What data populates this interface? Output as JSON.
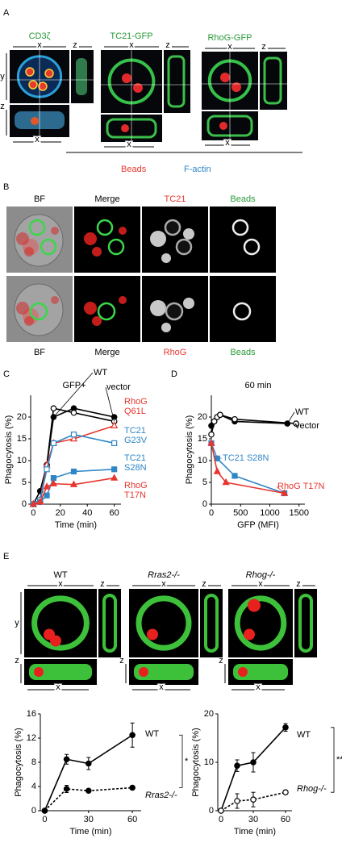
{
  "panels": {
    "A": {
      "label": "A",
      "images": [
        {
          "title": "CD3ζ",
          "top": "x",
          "side": "z",
          "left_top": "y",
          "left_bottom": "z",
          "bottom": "x"
        },
        {
          "title": "TC21-GFP",
          "top": "x",
          "side": "z",
          "bottom": "x"
        },
        {
          "title": "RhoG-GFP",
          "top": "x",
          "side": "z",
          "bottom": "x"
        }
      ],
      "legend": [
        "Beads",
        "F-actin"
      ]
    },
    "B": {
      "label": "B",
      "rows": [
        [
          "BF",
          "Merge",
          "TC21",
          "Beads"
        ],
        [
          "BF",
          "Merge",
          "RhoG",
          "Beads"
        ]
      ]
    },
    "C": {
      "label": "C"
    },
    "D": {
      "label": "D"
    },
    "E": {
      "label": "E",
      "images": [
        {
          "title": "WT",
          "top": "x",
          "side": "z",
          "left_top": "y",
          "left_bottom": "z",
          "bottom": "x"
        },
        {
          "title": "Rras2-/-",
          "top": "x",
          "side": "z",
          "left_bottom": "z",
          "bottom": "x"
        },
        {
          "title": "Rhog-/-",
          "top": "x",
          "side": "z",
          "left_bottom": "z",
          "bottom": "x"
        }
      ]
    }
  },
  "chart_data": [
    {
      "type": "line",
      "title": "GFP+",
      "x_label": "Time (min)",
      "y_label": "Phagocytosis (%)",
      "x": [
        0,
        5,
        10,
        15,
        30,
        60
      ],
      "xlim": [
        -2,
        65
      ],
      "ylim": [
        0,
        25
      ],
      "xticks": [
        0,
        20,
        40,
        60
      ],
      "yticks": [
        0,
        5,
        10,
        15,
        20
      ],
      "series": [
        {
          "name": "WT",
          "color": "#000000",
          "marker": "circle",
          "filled": true,
          "values": [
            0,
            3,
            9,
            20,
            22,
            20
          ]
        },
        {
          "name": "vector",
          "color": "#000000",
          "marker": "circle",
          "filled": false,
          "values": [
            0,
            0.5,
            9,
            22,
            21,
            19
          ]
        },
        {
          "name": "RhoG Q61L",
          "color": "#e8352e",
          "marker": "triangle",
          "filled": false,
          "values": [
            0,
            1,
            9,
            14,
            15,
            18
          ]
        },
        {
          "name": "TC21 G23V",
          "color": "#2f86c6",
          "marker": "square",
          "filled": false,
          "values": [
            0,
            1,
            8,
            14,
            16,
            14
          ]
        },
        {
          "name": "TC21 S28N",
          "color": "#2f86c6",
          "marker": "square",
          "filled": true,
          "values": [
            0,
            0.5,
            2,
            6,
            7.5,
            8
          ]
        },
        {
          "name": "RhoG T17N",
          "color": "#e8352e",
          "marker": "triangle",
          "filled": true,
          "values": [
            0,
            0.5,
            4,
            4.7,
            4.5,
            6
          ]
        }
      ]
    },
    {
      "type": "line",
      "title": "60 min",
      "x_label": "GFP (MFI)",
      "y_label": "Phagocytosis (%)",
      "xlim": [
        0,
        1600
      ],
      "ylim": [
        0,
        25
      ],
      "xticks": [
        0,
        500,
        1000,
        1500
      ],
      "yticks": [
        0,
        5,
        10,
        15,
        20
      ],
      "series": [
        {
          "name": "WT",
          "color": "#000000",
          "marker": "circle",
          "filled": true,
          "x": [
            0,
            50,
            100,
            150,
            400,
            1300
          ],
          "values": [
            18,
            19,
            20,
            20.5,
            19,
            18.5
          ]
        },
        {
          "name": "vector",
          "color": "#000000",
          "marker": "circle",
          "filled": false,
          "x": [
            0,
            50,
            100,
            150,
            400,
            1450
          ],
          "values": [
            16,
            19,
            20,
            20.5,
            19.5,
            18.5
          ]
        },
        {
          "name": "TC21 S28N",
          "color": "#2f86c6",
          "marker": "square",
          "filled": true,
          "x": [
            0,
            100,
            400,
            1250
          ],
          "values": [
            14,
            10.5,
            6.5,
            2.5
          ]
        },
        {
          "name": "RhoG T17N",
          "color": "#e8352e",
          "marker": "triangle",
          "filled": true,
          "x": [
            0,
            100,
            250,
            1250
          ],
          "values": [
            14,
            7.5,
            5,
            2.5
          ]
        }
      ]
    },
    {
      "type": "line",
      "x_label": "Time (min)",
      "y_label": "Phagocytosis (%)",
      "x": [
        0,
        15,
        30,
        60
      ],
      "xlim": [
        -3,
        66
      ],
      "ylim": [
        0,
        16
      ],
      "xticks": [
        0,
        30,
        60
      ],
      "yticks": [
        0,
        4,
        8,
        12,
        16
      ],
      "annotation": "*",
      "series": [
        {
          "name": "WT",
          "color": "#000000",
          "marker": "circle",
          "filled": true,
          "dash": false,
          "values": [
            0,
            8.5,
            7.8,
            12.5
          ],
          "errors": [
            0,
            0.8,
            1,
            2
          ]
        },
        {
          "name": "Rras2-/-",
          "color": "#000000",
          "marker": "circle",
          "filled": true,
          "dash": true,
          "font_style": "italic",
          "values": [
            0,
            3.6,
            3.3,
            3.8
          ],
          "errors": [
            0,
            0.6,
            0.3,
            0.3
          ]
        }
      ]
    },
    {
      "type": "line",
      "x_label": "Time (min)",
      "y_label": "Phagocytosis (%)",
      "x": [
        0,
        15,
        30,
        60
      ],
      "xlim": [
        -3,
        66
      ],
      "ylim": [
        0,
        20
      ],
      "xticks": [
        0,
        30,
        60
      ],
      "yticks": [
        0,
        10,
        20
      ],
      "annotation": "**",
      "series": [
        {
          "name": "WT",
          "color": "#000000",
          "marker": "circle",
          "filled": true,
          "dash": false,
          "values": [
            0,
            9.3,
            10,
            17.2
          ],
          "errors": [
            0,
            1.2,
            2,
            0.8
          ]
        },
        {
          "name": "Rhog-/-",
          "color": "#000000",
          "marker": "circle",
          "filled": false,
          "dash": true,
          "font_style": "italic",
          "values": [
            0,
            2,
            2.3,
            3.8
          ],
          "errors": [
            0,
            1.5,
            1.5,
            0.3
          ]
        }
      ]
    }
  ]
}
